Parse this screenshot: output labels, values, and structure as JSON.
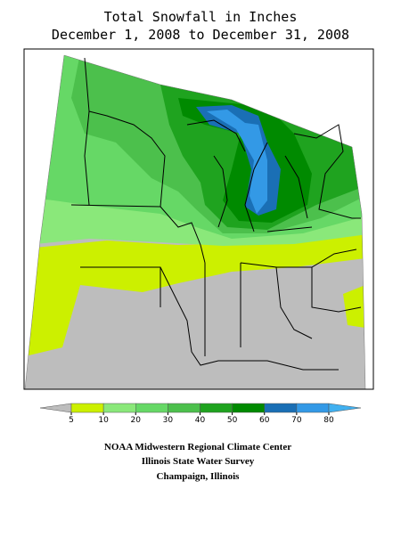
{
  "title": "Total Snowfall in Inches",
  "subtitle": "December 1, 2008 to December 31, 2008",
  "legend": {
    "ticks": [
      5,
      10,
      20,
      30,
      40,
      50,
      60,
      70,
      80
    ],
    "colors": [
      "#bdbdbd",
      "#ccf000",
      "#8ae87a",
      "#66d866",
      "#4cc04c",
      "#1fa31f",
      "#008a00",
      "#1a6fb5",
      "#3399e6",
      "#40b0f0"
    ]
  },
  "footer": [
    "NOAA Midwestern Regional Climate Center",
    "Illinois State Water Survey",
    "Champaign, Illinois"
  ]
}
